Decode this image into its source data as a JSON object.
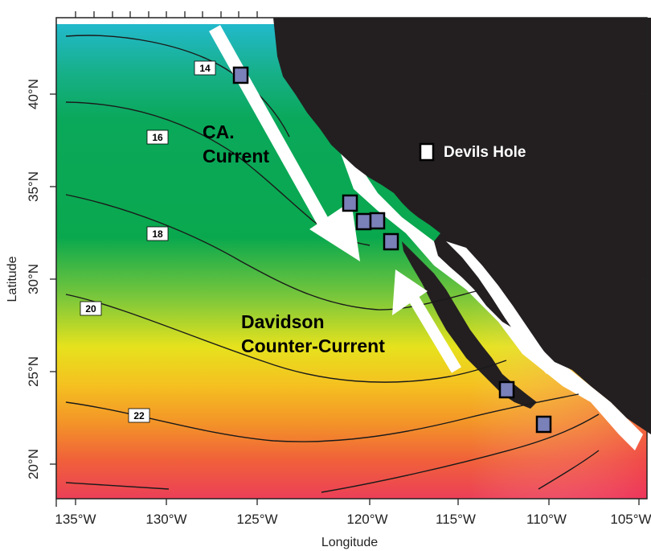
{
  "axes": {
    "x_title": "Longitude",
    "y_title": "Latitude",
    "x_ticks": [
      "135°W",
      "130°W",
      "125°W",
      "120°W",
      "115°W",
      "110°W",
      "105°W"
    ],
    "y_ticks": [
      "40°N",
      "35°N",
      "30°N",
      "25°N",
      "20°N"
    ]
  },
  "contour_labels": [
    "14",
    "16",
    "18",
    "20",
    "22"
  ],
  "annotations": {
    "ca_current_line1": "CA.",
    "ca_current_line2": "Current",
    "davidson_line1": "Davidson",
    "davidson_line2": "Counter-Current",
    "devils_hole": "Devils Hole"
  },
  "colors": {
    "land": "#231f20",
    "cold": "#1fb6c6",
    "mid": "#05a84a",
    "warm": "#f2e11a",
    "hot": "#f0324a",
    "site_marker": "#7a80b8"
  }
}
